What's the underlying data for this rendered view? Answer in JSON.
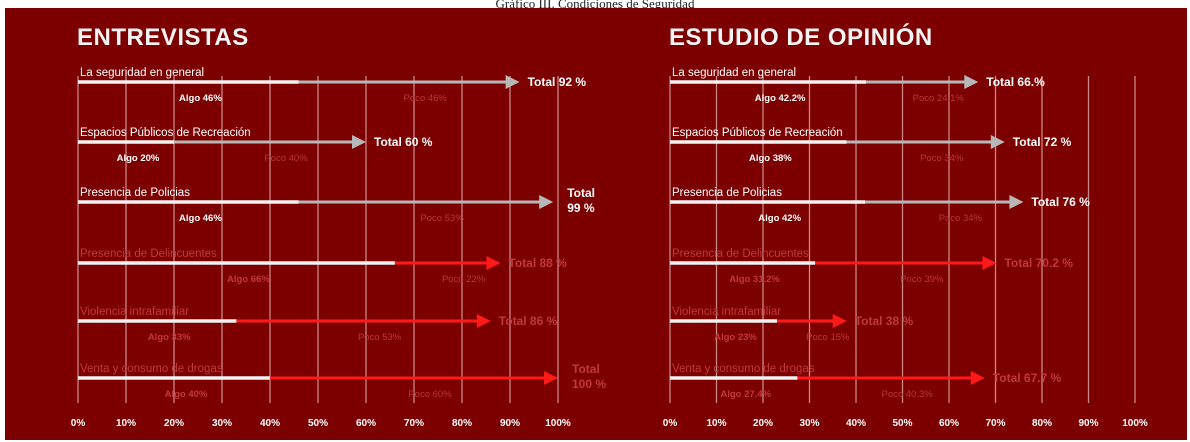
{
  "caption": "Gráfico III. Condiciones de Seguridad",
  "colors": {
    "background": "#7d0000",
    "white_bar": "#f2f2f2",
    "gray_arrow": "#b8b8b8",
    "red_arrow": "#ff1a1a",
    "gridline": "#d9a0a0",
    "label_white": "#ffffff",
    "label_faded": "#c0383a"
  },
  "chart_data": [
    {
      "type": "bar",
      "title": "ENTREVISTAS",
      "xlim": [
        0,
        100
      ],
      "ticks": [
        "0%",
        "10%",
        "20%",
        "30%",
        "40%",
        "50%",
        "60%",
        "70%",
        "80%",
        "90%",
        "100%"
      ],
      "grid": true,
      "rows": [
        {
          "label": "La seguridad en general",
          "algo": 46,
          "algo_label": "Algo 46%",
          "poco_label": "Poco 46%",
          "total": 92,
          "total_label": "Total 92 %",
          "color": "gray"
        },
        {
          "label": "Espacios Públicos de Recreación",
          "algo": 20,
          "algo_label": "Algo 20%",
          "poco_label": "Poco 40%",
          "total": 60,
          "total_label": "Total 60 %",
          "color": "gray"
        },
        {
          "label": "Presencia de Policias",
          "algo": 46,
          "algo_label": "Algo 46%",
          "poco_label": "Poco 53%",
          "total": 99,
          "total_label": "Total 99 %",
          "color": "gray"
        },
        {
          "label": "Presencia de Delincuentes",
          "algo": 66,
          "algo_label": "Algo 66%",
          "poco_label": "Poco 22%",
          "total": 88,
          "total_label": "Total 88 %",
          "color": "red"
        },
        {
          "label": "Violencia intrafamiliar",
          "algo": 33,
          "algo_label": "Algo 33%",
          "poco_label": "Poco 53%",
          "total": 86,
          "total_label": "Total 86 %",
          "color": "red"
        },
        {
          "label": "Venta y consumo de drogas",
          "algo": 40,
          "algo_label": "Algo 40%",
          "poco_label": "Poco 60%",
          "total": 100,
          "total_label": "Total 100 %",
          "color": "red"
        }
      ]
    },
    {
      "type": "bar",
      "title": "ESTUDIO DE OPINIÓN",
      "xlim": [
        0,
        100
      ],
      "ticks": [
        "0%",
        "10%",
        "20%",
        "30%",
        "40%",
        "50%",
        "60%",
        "70%",
        "80%",
        "90%",
        "100%"
      ],
      "grid": true,
      "rows": [
        {
          "label": "La seguridad en general",
          "algo": 42.2,
          "algo_label": "Algo 42.2%",
          "poco_label": "Poco 24.1%",
          "total": 66.3,
          "total_label": "Total 66.%",
          "color": "gray"
        },
        {
          "label": "Espacios Públicos de Recreación",
          "algo": 38,
          "algo_label": "Algo 38%",
          "poco_label": "Poco 34%",
          "total": 72,
          "total_label": "Total 72 %",
          "color": "gray"
        },
        {
          "label": "Presencia de Policias",
          "algo": 42,
          "algo_label": "Algo 42%",
          "poco_label": "Poco 34%",
          "total": 76,
          "total_label": "Total 76 %",
          "color": "gray"
        },
        {
          "label": "Presencia de Delincuentes",
          "algo": 31.2,
          "algo_label": "Algo 31.2%",
          "poco_label": "Poco 39%",
          "total": 70.2,
          "total_label": "Total 70.2 %",
          "color": "red"
        },
        {
          "label": "Violencia intrafamiliar",
          "algo": 23,
          "algo_label": "Algo 23%",
          "poco_label": "Poco 15%",
          "total": 38,
          "total_label": "Total 38 %",
          "color": "red"
        },
        {
          "label": "Venta y consumo de drogas",
          "algo": 27.4,
          "algo_label": "Algo 27.4%",
          "poco_label": "Poco 40.3%",
          "total": 67.7,
          "total_label": "Total 67.7 %",
          "color": "red"
        }
      ]
    }
  ]
}
